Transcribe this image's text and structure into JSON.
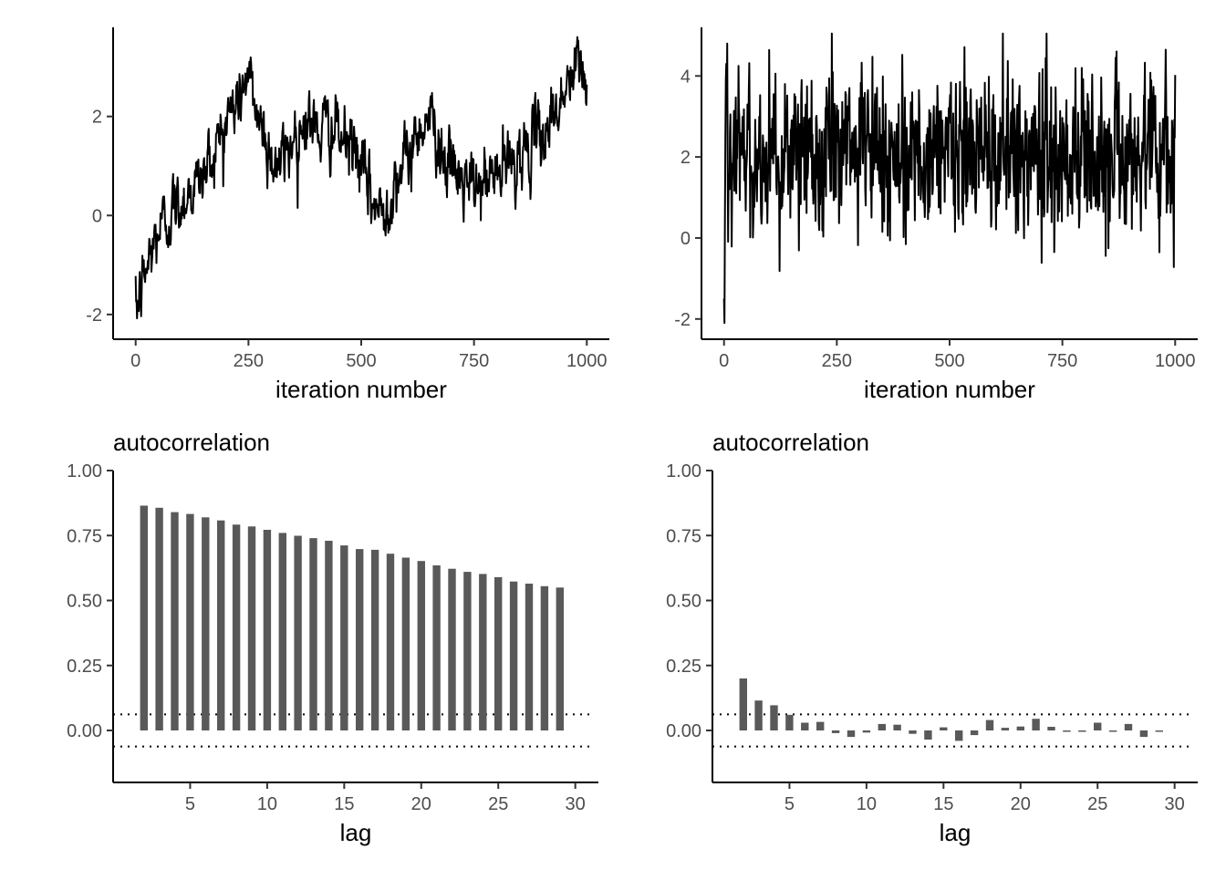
{
  "colors": {
    "bar": "#595959",
    "line": "#000000"
  },
  "chart_data": [
    {
      "type": "line",
      "id": "trace-1",
      "xlabel": "iteration number",
      "ylabel": "",
      "xlim": [
        -50,
        1050
      ],
      "ylim": [
        -2.5,
        3.8
      ],
      "xticks": [
        0,
        250,
        500,
        750,
        1000
      ],
      "xtick_labels": [
        "0",
        "250",
        "500",
        "750",
        "1000"
      ],
      "yticks": [
        -2,
        0,
        2
      ],
      "ytick_labels": [
        "-2",
        "0",
        "2"
      ],
      "n_iterations": 1000,
      "trend_x": [
        0,
        20,
        50,
        100,
        150,
        200,
        230,
        245,
        260,
        300,
        320,
        350,
        380,
        400,
        430,
        460,
        490,
        510,
        530,
        545,
        560,
        580,
        600,
        620,
        640,
        660,
        680,
        700,
        720,
        750,
        780,
        810,
        850,
        900,
        940,
        970,
        985,
        1000
      ],
      "trend_y": [
        -2.0,
        -1.2,
        -0.3,
        0.3,
        0.8,
        1.9,
        2.4,
        2.8,
        2.4,
        1.2,
        1.0,
        1.6,
        2.0,
        1.7,
        1.8,
        1.5,
        1.3,
        0.6,
        0.2,
        0.0,
        0.3,
        0.9,
        1.0,
        1.6,
        2.0,
        1.9,
        1.3,
        0.9,
        0.7,
        0.5,
        0.7,
        0.9,
        1.2,
        1.6,
        2.3,
        2.8,
        3.1,
        2.6
      ],
      "noise_sd": 0.35,
      "lag1_autocorrelation": 0.86
    },
    {
      "type": "line",
      "id": "trace-2",
      "xlabel": "iteration number",
      "ylabel": "",
      "xlim": [
        -50,
        1050
      ],
      "ylim": [
        -2.5,
        5.2
      ],
      "xticks": [
        0,
        250,
        500,
        750,
        1000
      ],
      "xtick_labels": [
        "0",
        "250",
        "500",
        "750",
        "1000"
      ],
      "yticks": [
        -2,
        0,
        2,
        4
      ],
      "ytick_labels": [
        "-2",
        "0",
        "2",
        "4"
      ],
      "n_iterations": 1000,
      "start_values": [
        -1.5,
        -2.1,
        0.5,
        2.5,
        3.9,
        4.3,
        3.2,
        4.8
      ],
      "mean": 2.1,
      "sd": 1.0,
      "lag1_autocorrelation": 0.2
    },
    {
      "type": "bar",
      "id": "acf-1",
      "title": "autocorrelation",
      "xlabel": "lag",
      "ylabel": "",
      "xlim": [
        0,
        31.5
      ],
      "ylim": [
        -0.2,
        1.0
      ],
      "xticks": [
        5,
        10,
        15,
        20,
        25,
        30
      ],
      "xtick_labels": [
        "5",
        "10",
        "15",
        "20",
        "25",
        "30"
      ],
      "yticks": [
        0.0,
        0.25,
        0.5,
        0.75,
        1.0
      ],
      "ytick_labels": [
        "0.00",
        "0.25",
        "0.50",
        "0.75",
        "1.00"
      ],
      "lags": [
        2,
        3,
        4,
        5,
        6,
        7,
        8,
        9,
        10,
        11,
        12,
        13,
        14,
        15,
        16,
        17,
        18,
        19,
        20,
        21,
        22,
        23,
        24,
        25,
        26,
        27,
        28,
        29
      ],
      "values": [
        0.865,
        0.857,
        0.84,
        0.833,
        0.82,
        0.808,
        0.792,
        0.785,
        0.772,
        0.76,
        0.749,
        0.74,
        0.73,
        0.712,
        0.698,
        0.695,
        0.68,
        0.665,
        0.652,
        0.635,
        0.622,
        0.61,
        0.602,
        0.59,
        0.573,
        0.565,
        0.555,
        0.55
      ],
      "confidence_band": [
        -0.062,
        0.062
      ]
    },
    {
      "type": "bar",
      "id": "acf-2",
      "title": "autocorrelation",
      "xlabel": "lag",
      "ylabel": "",
      "xlim": [
        0,
        31.5
      ],
      "ylim": [
        -0.2,
        1.0
      ],
      "xticks": [
        5,
        10,
        15,
        20,
        25,
        30
      ],
      "xtick_labels": [
        "5",
        "10",
        "15",
        "20",
        "25",
        "30"
      ],
      "yticks": [
        0.0,
        0.25,
        0.5,
        0.75,
        1.0
      ],
      "ytick_labels": [
        "0.00",
        "0.25",
        "0.50",
        "0.75",
        "1.00"
      ],
      "lags": [
        2,
        3,
        4,
        5,
        6,
        7,
        8,
        9,
        10,
        11,
        12,
        13,
        14,
        15,
        16,
        17,
        18,
        19,
        20,
        21,
        22,
        23,
        24,
        25,
        26,
        27,
        28,
        29
      ],
      "values": [
        0.2,
        0.115,
        0.097,
        0.06,
        0.03,
        0.033,
        -0.01,
        -0.025,
        -0.008,
        0.025,
        0.022,
        -0.013,
        -0.035,
        0.012,
        -0.04,
        -0.018,
        0.04,
        0.01,
        0.015,
        0.045,
        0.014,
        -0.005,
        -0.005,
        0.03,
        -0.003,
        0.025,
        -0.025,
        -0.003
      ],
      "confidence_band": [
        -0.062,
        0.062
      ]
    }
  ]
}
